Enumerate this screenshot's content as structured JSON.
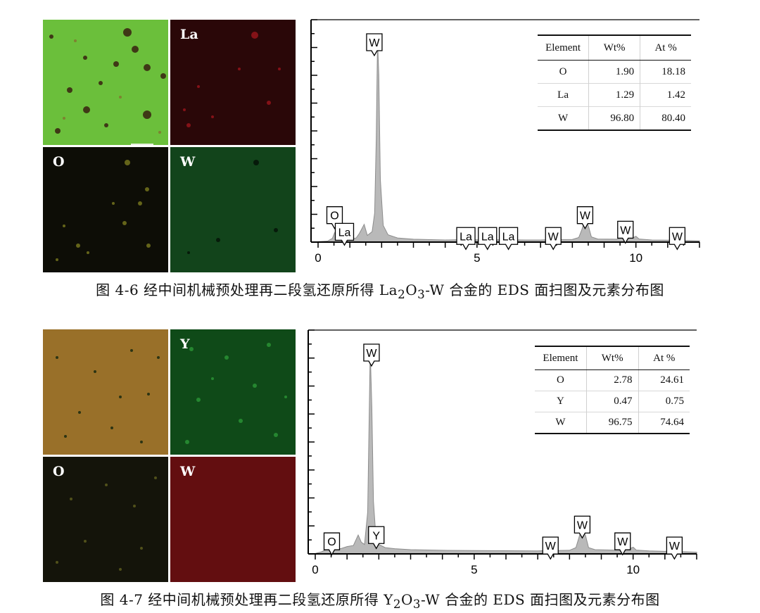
{
  "figures": [
    {
      "caption": {
        "label": "图 4-6",
        "text_before": "经中间机械预处理再二段氢还原所得 La",
        "sub1": "2",
        "text_mid": "O",
        "sub2": "3",
        "text_after": "-W 合金的 EDS 面扫图及元素分布图"
      },
      "maps": {
        "overlay": {
          "label": "",
          "color": "#6fc43f"
        },
        "element1": {
          "label": "La",
          "color": "#2a0708"
        },
        "element2": {
          "label": "O",
          "color": "#0d0d06"
        },
        "element3": {
          "label": "W",
          "color": "#0f3a16"
        }
      },
      "table": {
        "headers": [
          "Element",
          "Wt%",
          "At %"
        ],
        "rows": [
          [
            "O",
            "1.90",
            "18.18"
          ],
          [
            "La",
            "1.29",
            "1.42"
          ],
          [
            "W",
            "96.80",
            "80.40"
          ]
        ]
      },
      "peak_labels": [
        "W",
        "O",
        "La",
        "La",
        "La",
        "La",
        "W",
        "W",
        "W",
        "W"
      ],
      "chart_data": {
        "type": "area",
        "title": "",
        "xlabel": "",
        "ylabel": "",
        "xlim": [
          0,
          12
        ],
        "x_ticks": [
          "0",
          "5",
          "10"
        ],
        "grid": false,
        "series": [
          {
            "x": [
              0.0,
              0.3,
              0.45,
              0.52,
              0.6,
              0.7,
              0.83,
              0.95,
              1.2,
              1.3,
              1.45,
              1.55,
              1.7,
              1.78,
              1.83,
              1.87,
              1.91,
              1.96,
              2.05,
              2.2,
              2.5,
              3.0,
              4.0,
              4.6,
              4.65,
              4.7,
              5.0,
              5.6,
              6.0,
              6.5,
              7.0,
              7.3,
              7.4,
              7.5,
              8.0,
              8.2,
              8.3,
              8.4,
              8.5,
              8.6,
              8.8,
              9.4,
              9.6,
              9.67,
              9.75,
              9.9,
              10.0,
              10.1,
              10.5,
              11.0,
              11.3,
              11.5,
              12.0
            ],
            "y": [
              0.2,
              0.5,
              1.8,
              4.5,
              2.4,
              1.5,
              2.8,
              1.4,
              2.0,
              4.2,
              8.5,
              3.2,
              5.0,
              14.0,
              50.0,
              97.0,
              80.0,
              30.0,
              8.0,
              3.5,
              2.0,
              1.4,
              1.0,
              1.2,
              1.6,
              1.2,
              1.1,
              1.1,
              1.1,
              1.0,
              1.0,
              1.2,
              1.6,
              1.2,
              1.3,
              2.2,
              6.0,
              11.5,
              8.0,
              2.5,
              1.5,
              1.4,
              2.2,
              4.5,
              3.0,
              2.0,
              2.8,
              1.5,
              1.0,
              0.9,
              1.0,
              0.8,
              0.6
            ]
          }
        ],
        "peak_markers": [
          {
            "label": "W",
            "x": 1.77,
            "y": 100
          },
          {
            "label": "O",
            "x": 0.52,
            "y": 17
          },
          {
            "label": "La",
            "x": 0.83,
            "y": 9
          },
          {
            "label": "La",
            "x": 4.65,
            "y": 7
          },
          {
            "label": "La",
            "x": 5.33,
            "y": 7
          },
          {
            "label": "La",
            "x": 5.99,
            "y": 7
          },
          {
            "label": "W",
            "x": 7.4,
            "y": 7
          },
          {
            "label": "W",
            "x": 8.4,
            "y": 17
          },
          {
            "label": "W",
            "x": 9.67,
            "y": 10
          },
          {
            "label": "W",
            "x": 11.3,
            "y": 7
          }
        ]
      }
    },
    {
      "caption": {
        "label": "图 4-7",
        "text_before": "经中间机械预处理再二段氢还原所得 Y",
        "sub1": "2",
        "text_mid": "O",
        "sub2": "3",
        "text_after": "-W 合金的 EDS 面扫图及元素分布图"
      },
      "maps": {
        "overlay": {
          "label": "",
          "color": "#9c6a2a"
        },
        "element1": {
          "label": "Y",
          "color": "#0f4a18"
        },
        "element2": {
          "label": "O",
          "color": "#14140a"
        },
        "element3": {
          "label": "W",
          "color": "#5a0c0e"
        }
      },
      "table": {
        "headers": [
          "Element",
          "Wt%",
          "At %"
        ],
        "rows": [
          [
            "O",
            "2.78",
            "24.61"
          ],
          [
            "Y",
            "0.47",
            "0.75"
          ],
          [
            "W",
            "96.75",
            "74.64"
          ]
        ]
      },
      "peak_labels": [
        "W",
        "O",
        "Y",
        "W",
        "W",
        "W",
        "W"
      ],
      "chart_data": {
        "type": "area",
        "title": "",
        "xlabel": "",
        "ylabel": "",
        "xlim": [
          0,
          12
        ],
        "x_ticks": [
          "0",
          "5",
          "10"
        ],
        "grid": false,
        "series": [
          {
            "x": [
              0.0,
              0.2,
              0.4,
              0.52,
              0.65,
              0.8,
              1.0,
              1.2,
              1.35,
              1.45,
              1.55,
              1.65,
              1.73,
              1.78,
              1.83,
              1.9,
              1.93,
              2.0,
              2.2,
              2.5,
              3.0,
              4.0,
              5.0,
              6.0,
              7.0,
              7.3,
              7.4,
              7.5,
              8.0,
              8.2,
              8.3,
              8.4,
              8.5,
              8.6,
              8.8,
              9.4,
              9.6,
              9.67,
              9.75,
              9.9,
              10.0,
              10.1,
              10.5,
              11.0,
              11.3,
              11.5,
              12.0
            ],
            "y": [
              0.2,
              1.0,
              2.5,
              4.0,
              2.8,
              2.5,
              3.5,
              4.0,
              9.0,
              5.5,
              4.5,
              20.0,
              97.0,
              70.0,
              25.0,
              10.0,
              8.0,
              4.5,
              3.0,
              2.5,
              2.0,
              1.7,
              1.6,
              1.5,
              1.4,
              1.6,
              2.0,
              1.6,
              1.7,
              3.0,
              8.0,
              14.0,
              9.0,
              3.0,
              2.0,
              1.8,
              3.0,
              5.5,
              4.0,
              2.5,
              3.2,
              1.8,
              1.4,
              1.2,
              1.4,
              1.1,
              0.8
            ]
          }
        ],
        "peak_markers": [
          {
            "label": "W",
            "x": 1.77,
            "y": 100
          },
          {
            "label": "O",
            "x": 0.52,
            "y": 10
          },
          {
            "label": "Y",
            "x": 1.92,
            "y": 13
          },
          {
            "label": "W",
            "x": 7.4,
            "y": 8
          },
          {
            "label": "W",
            "x": 8.4,
            "y": 18
          },
          {
            "label": "W",
            "x": 9.67,
            "y": 10
          },
          {
            "label": "W",
            "x": 11.3,
            "y": 8
          }
        ]
      }
    }
  ]
}
